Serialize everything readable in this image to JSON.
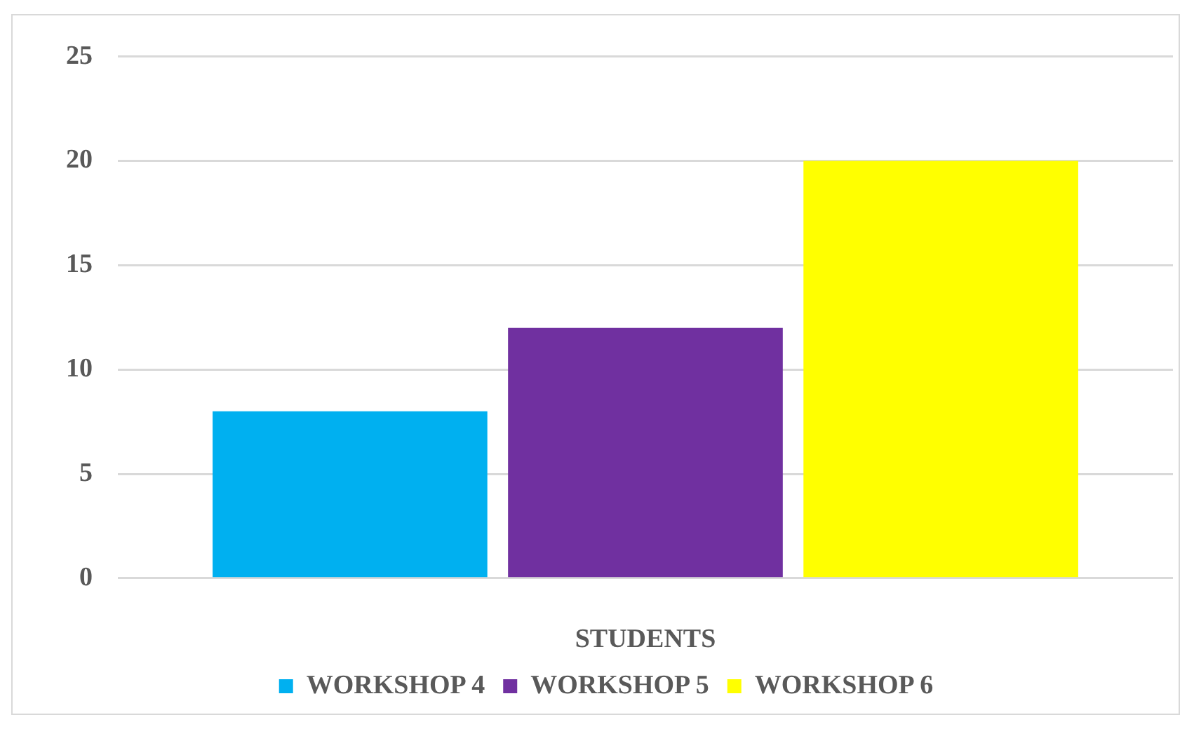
{
  "chart_data": {
    "type": "bar",
    "xlabel": "STUDENTS",
    "categories": [
      null
    ],
    "series": [
      {
        "name": "WORKSHOP 4",
        "color": "#00b0f0",
        "values": [
          8
        ]
      },
      {
        "name": "WORKSHOP 5",
        "color": "#7030a0",
        "values": [
          12
        ]
      },
      {
        "name": "WORKSHOP 6",
        "color": "#ffff00",
        "values": [
          20
        ]
      }
    ],
    "ylim": [
      0,
      25
    ],
    "yticks": [
      0,
      5,
      10,
      15,
      20,
      25
    ],
    "grid": "y",
    "legend": "bottom"
  }
}
